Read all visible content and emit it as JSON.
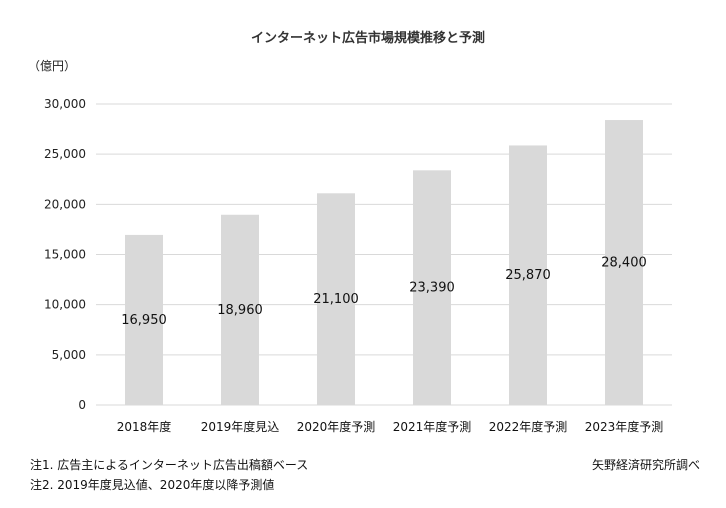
{
  "chart_data": {
    "type": "bar",
    "title": "インターネット広告市場規模推移と予測",
    "ylabel": "（億円）",
    "xlabel": "",
    "categories": [
      "2018年度",
      "2019年度見込",
      "2020年度予測",
      "2021年度予測",
      "2022年度予測",
      "2023年度予測"
    ],
    "values": [
      16950,
      18960,
      21100,
      23390,
      25870,
      28400
    ],
    "data_labels": [
      "16,950",
      "18,960",
      "21,100",
      "23,390",
      "25,870",
      "28,400"
    ],
    "ylim": [
      0,
      30000
    ],
    "y_ticks": [
      0,
      5000,
      10000,
      15000,
      20000,
      25000,
      30000
    ],
    "y_tick_labels": [
      "0",
      "5,000",
      "10,000",
      "15,000",
      "20,000",
      "25,000",
      "30,000"
    ],
    "grid": true,
    "bar_color": "#d9d9d9",
    "grid_color": "#d9d9d9"
  },
  "notes": {
    "note1": "注1. 広告主によるインターネット広告出稿額ベース",
    "note2": "注2. 2019年度見込値、2020年度以降予測値",
    "source": "矢野経済研究所調べ"
  }
}
